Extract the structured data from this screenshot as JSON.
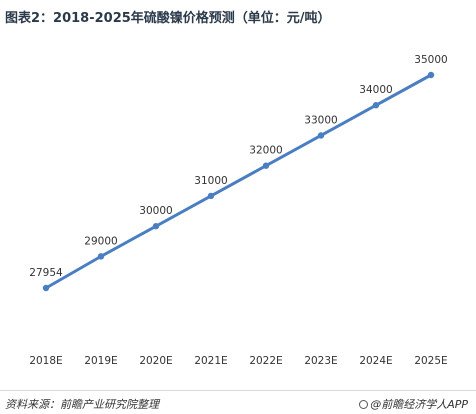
{
  "title": "图表2：2018-2025年硫酸镍价格预测（单位：元/吨）",
  "source": "资料来源：前瞻产业研究院整理",
  "credit": "@前瞻经济学人APP",
  "colors": {
    "line": "#4a7ec2",
    "point": "#4a7ec2",
    "label": "#333333"
  },
  "chart_data": {
    "type": "line",
    "categories": [
      "2018E",
      "2019E",
      "2020E",
      "2021E",
      "2022E",
      "2023E",
      "2024E",
      "2025E"
    ],
    "series": [
      {
        "values": [
          27954,
          29000,
          30000,
          31000,
          32000,
          33000,
          34000,
          35000
        ]
      }
    ],
    "data_labels": [
      "27954",
      "29000",
      "30000",
      "31000",
      "32000",
      "33000",
      "34000",
      "35000"
    ],
    "grid": false,
    "legend": "none"
  }
}
